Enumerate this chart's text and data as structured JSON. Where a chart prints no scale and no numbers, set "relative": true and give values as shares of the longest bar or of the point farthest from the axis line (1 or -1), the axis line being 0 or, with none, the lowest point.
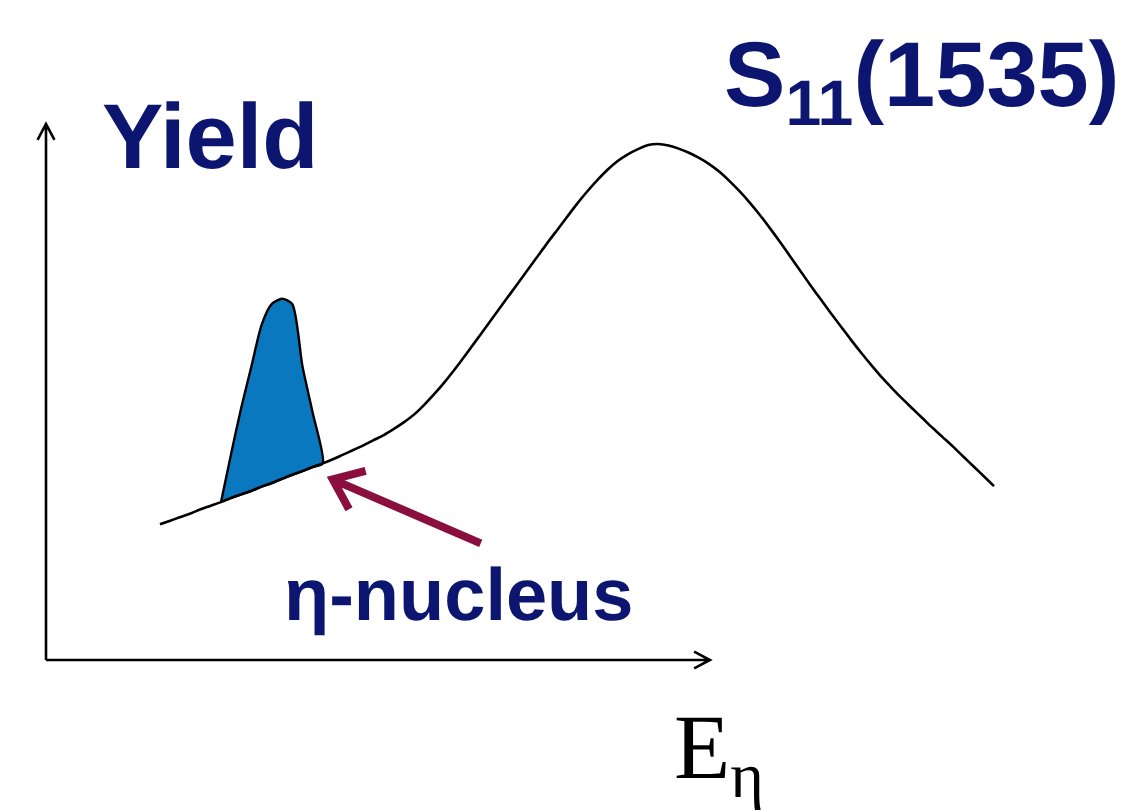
{
  "chart_data": {
    "type": "line",
    "relative": true,
    "xlabel": "E$_{η}$",
    "ylabel": "Yield",
    "categories": [
      null,
      null,
      null,
      null,
      null,
      null,
      null,
      null,
      null,
      null,
      null,
      null,
      null,
      null,
      null,
      null,
      null,
      null,
      null,
      null,
      null,
      null,
      null,
      null,
      null,
      null,
      null,
      null,
      null,
      null,
      null,
      null,
      null,
      null,
      null,
      null,
      null,
      null,
      null,
      null,
      null,
      null,
      null,
      null,
      null,
      null,
      null,
      null,
      null,
      null,
      null,
      null,
      null,
      null,
      null,
      null,
      null,
      null,
      null,
      null,
      null,
      null,
      null,
      null,
      null,
      null,
      null,
      null,
      null,
      null,
      null,
      null,
      null,
      null,
      null,
      null,
      null,
      null,
      null,
      null,
      null,
      null,
      null
    ],
    "series": [
      {
        "name": "S$_{11}$(1535)",
        "color": "#000000",
        "values": [
          0.263,
          0.27,
          0.277,
          0.284,
          0.292,
          0.299,
          0.306,
          0.314,
          0.321,
          0.328,
          0.336,
          0.343,
          0.351,
          0.359,
          0.366,
          0.374,
          0.381,
          0.389,
          0.398,
          0.407,
          0.416,
          0.426,
          0.436,
          0.448,
          0.461,
          0.476,
          0.495,
          0.516,
          0.539,
          0.564,
          0.59,
          0.617,
          0.644,
          0.671,
          0.698,
          0.725,
          0.752,
          0.779,
          0.806,
          0.832,
          0.858,
          0.884,
          0.908,
          0.93,
          0.95,
          0.967,
          0.98,
          0.99,
          0.998,
          1,
          0.997,
          0.991,
          0.983,
          0.973,
          0.961,
          0.946,
          0.928,
          0.908,
          0.886,
          0.862,
          0.836,
          0.809,
          0.781,
          0.753,
          0.725,
          0.698,
          0.671,
          0.645,
          0.619,
          0.594,
          0.57,
          0.547,
          0.526,
          0.506,
          0.487,
          0.468,
          0.449,
          0.431,
          0.413,
          0.394,
          0.375,
          0.356,
          0.337
        ]
      },
      {
        "name": "η-nucleus",
        "type": "area",
        "color": "#0a78be",
        "values": [
          null,
          null,
          null,
          null,
          null,
          null,
          0.306,
          0.4,
          0.49,
          0.57,
          0.65,
          0.69,
          0.7,
          0.69,
          0.57,
          0.48,
          0.381,
          null,
          null,
          null,
          null,
          null,
          null,
          null,
          null,
          null,
          null,
          null,
          null,
          null,
          null,
          null,
          null,
          null,
          null,
          null,
          null,
          null,
          null,
          null,
          null,
          null,
          null,
          null,
          null,
          null,
          null,
          null,
          null,
          null,
          null,
          null,
          null,
          null,
          null,
          null,
          null,
          null,
          null,
          null,
          null,
          null,
          null,
          null,
          null,
          null,
          null,
          null,
          null,
          null,
          null,
          null,
          null,
          null,
          null,
          null,
          null,
          null,
          null,
          null,
          null,
          null,
          null
        ]
      }
    ]
  }
}
